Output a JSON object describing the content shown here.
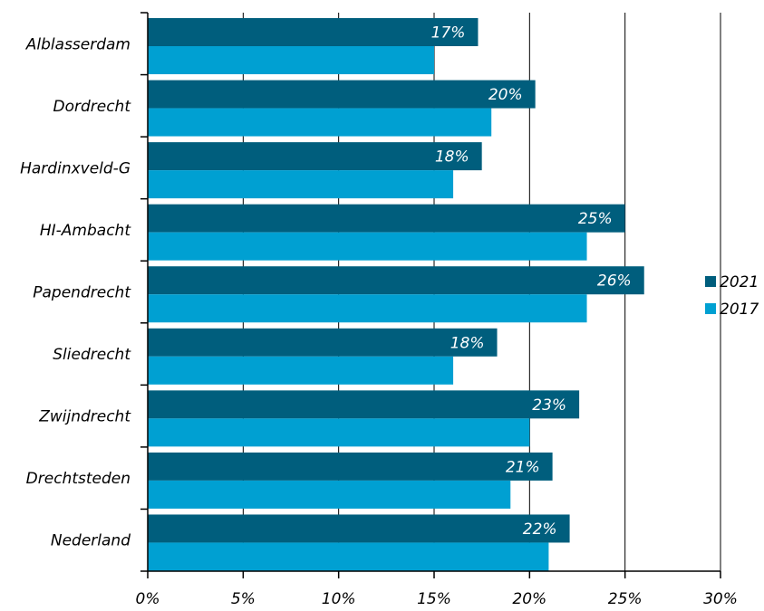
{
  "chart_data": {
    "type": "bar",
    "orientation": "horizontal",
    "categories": [
      "Alblasserdam",
      "Dordrecht",
      "Hardinxveld-G",
      "HI-Ambacht",
      "Papendrecht",
      "Sliedrecht",
      "Zwijndrecht",
      "Drechtsteden",
      "Nederland"
    ],
    "series": [
      {
        "name": "2021",
        "color": "#005e7d",
        "values": [
          17.3,
          20.3,
          17.5,
          25.0,
          26.0,
          18.3,
          22.6,
          21.2,
          22.1
        ],
        "labels": [
          "17%",
          "20%",
          "18%",
          "25%",
          "26%",
          "18%",
          "23%",
          "21%",
          "22%"
        ]
      },
      {
        "name": "2017",
        "color": "#00a0d2",
        "values": [
          15.0,
          18.0,
          16.0,
          23.0,
          23.0,
          16.0,
          20.0,
          19.0,
          21.0
        ]
      }
    ],
    "x_ticks": [
      "0%",
      "5%",
      "10%",
      "15%",
      "20%",
      "25%",
      "30%"
    ],
    "xlim": [
      0,
      30
    ],
    "grid": "vertical",
    "legend_position": "right",
    "title": "",
    "xlabel": "",
    "ylabel": ""
  }
}
